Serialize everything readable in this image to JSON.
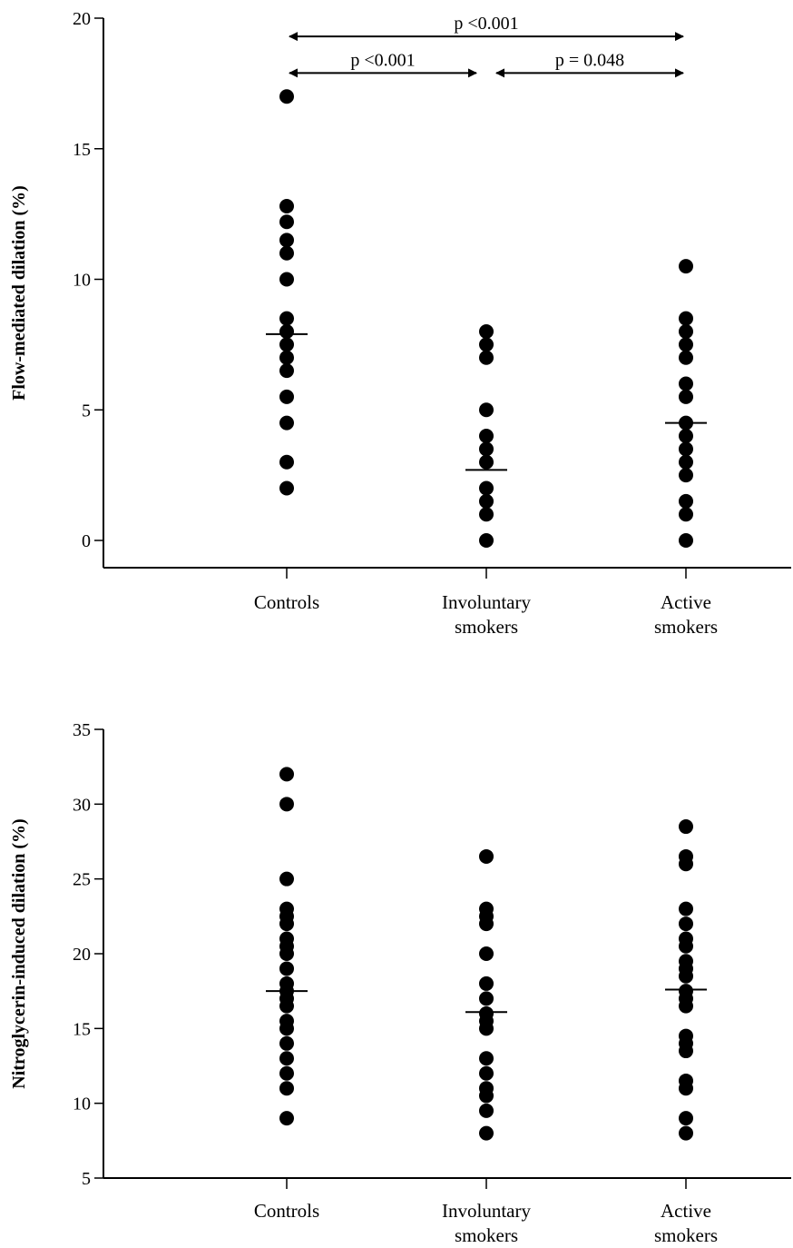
{
  "chart_data": [
    {
      "type": "scatter",
      "title": "",
      "xlabel": "",
      "ylabel": "Flow-mediated dilation (%)",
      "ylim": [
        0,
        20
      ],
      "yticks": [
        0,
        5,
        10,
        15,
        20
      ],
      "categories": [
        [
          "Controls"
        ],
        [
          "Involuntary",
          "smokers"
        ],
        [
          "Active",
          "smokers"
        ]
      ],
      "series": [
        {
          "values": [
            17,
            12.8,
            12.2,
            11.5,
            11,
            10,
            8.5,
            8,
            7.5,
            7,
            6.5,
            5.5,
            4.5,
            3,
            2
          ],
          "mean": 7.9
        },
        {
          "values": [
            8,
            7.5,
            7,
            5,
            4,
            3.5,
            3,
            2,
            1.5,
            1,
            0
          ],
          "mean": 2.7
        },
        {
          "values": [
            10.5,
            8.5,
            8,
            7.5,
            7,
            6,
            5.5,
            4.5,
            4,
            3.5,
            3,
            2.5,
            1.5,
            1,
            0
          ],
          "mean": 4.5
        }
      ],
      "annotations": [
        {
          "from": 0,
          "to": 2,
          "y": 19.3,
          "label": "p <0.001"
        },
        {
          "from": 0,
          "to": 1,
          "y": 17.9,
          "label": "p <0.001"
        },
        {
          "from": 1,
          "to": 2,
          "y": 17.9,
          "label": "p = 0.048"
        }
      ]
    },
    {
      "type": "scatter",
      "title": "",
      "xlabel": "",
      "ylabel": "Nitroglycerin-induced dilation (%)",
      "ylim": [
        5,
        35
      ],
      "yticks": [
        5,
        10,
        15,
        20,
        25,
        30,
        35
      ],
      "categories": [
        [
          "Controls"
        ],
        [
          "Involuntary",
          "smokers"
        ],
        [
          "Active",
          "smokers"
        ]
      ],
      "series": [
        {
          "values": [
            32,
            30,
            25,
            23,
            22.5,
            22,
            21,
            20.5,
            20,
            19,
            18,
            17.5,
            17,
            16.5,
            15.5,
            15,
            14,
            13,
            12,
            11,
            9
          ],
          "mean": 17.5
        },
        {
          "values": [
            26.5,
            23,
            22.5,
            22,
            20,
            18,
            17,
            16,
            15.5,
            15,
            13,
            12,
            11,
            10.5,
            9.5,
            8
          ],
          "mean": 16.1
        },
        {
          "values": [
            28.5,
            26.5,
            26,
            23,
            22,
            21,
            20.5,
            19.5,
            19,
            18.5,
            17.5,
            17,
            16.5,
            14.5,
            14,
            13.5,
            11.5,
            11,
            9,
            8
          ],
          "mean": 17.6
        }
      ],
      "annotations": []
    }
  ]
}
